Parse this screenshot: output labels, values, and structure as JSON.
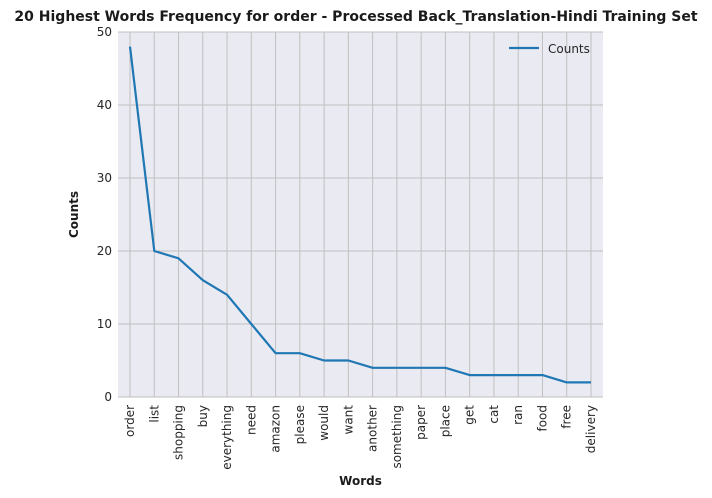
{
  "chart_data": {
    "type": "line",
    "title": "20 Highest Words Frequency for order - Processed Back_Translation-Hindi Training Set",
    "xlabel": "Words",
    "ylabel": "Counts",
    "categories": [
      "order",
      "list",
      "shopping",
      "buy",
      "everything",
      "need",
      "amazon",
      "please",
      "would",
      "want",
      "another",
      "something",
      "paper",
      "place",
      "get",
      "cat",
      "ran",
      "food",
      "free",
      "delivery"
    ],
    "series": [
      {
        "name": "Counts",
        "color": "#1f77b4",
        "values": [
          48,
          20,
          19,
          16,
          14,
          10,
          6,
          6,
          5,
          5,
          4,
          4,
          4,
          4,
          3,
          3,
          3,
          3,
          2,
          2
        ]
      }
    ],
    "ylim": [
      0,
      50
    ],
    "yticks": [
      0,
      10,
      20,
      30,
      40,
      50
    ],
    "grid": true,
    "legend_position": "top-right",
    "background_color": "#eaeaf2",
    "grid_color": "#c0c0c0"
  }
}
